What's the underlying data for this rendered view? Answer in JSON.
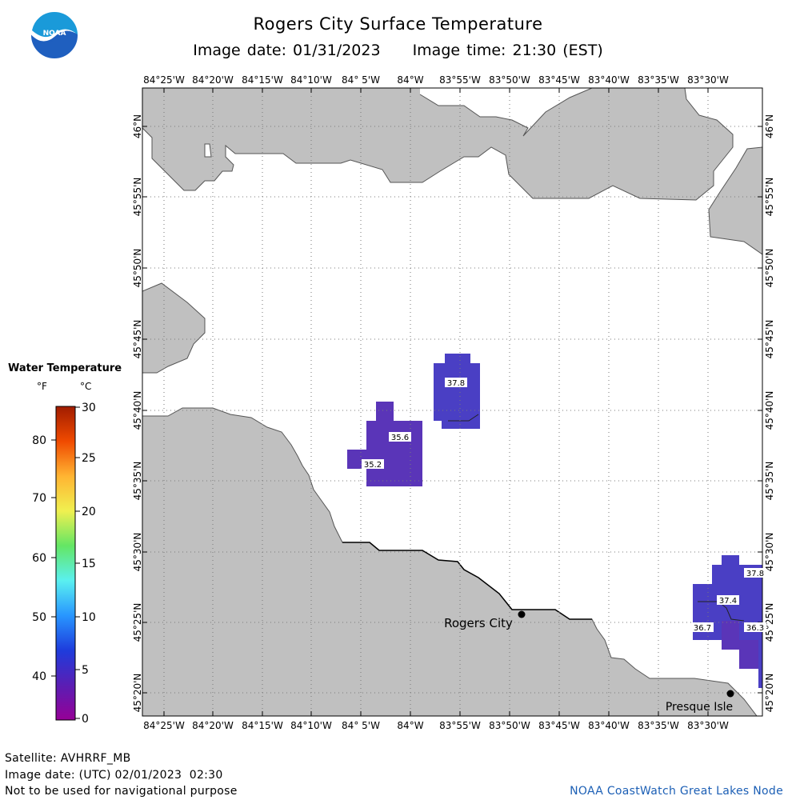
{
  "header": {
    "title": "Rogers City Surface Temperature",
    "image_date": "Image date: 01/31/2023",
    "image_time": "Image time: 21:30 (EST)"
  },
  "logo": {
    "text": "NOAA"
  },
  "map": {
    "lon_labels": [
      "84°25'W",
      "84°20'W",
      "84°15'W",
      "84°10'W",
      "84° 5'W",
      "84°W",
      "83°55'W",
      "83°50'W",
      "83°45'W",
      "83°40'W",
      "83°35'W",
      "83°30'W"
    ],
    "lat_labels": [
      "46°N",
      "45°55'N",
      "45°50'N",
      "45°45'N",
      "45°40'N",
      "45°35'N",
      "45°30'N",
      "45°25'N",
      "45°20'N"
    ],
    "places": [
      {
        "name": "Rogers City"
      },
      {
        "name": "Presque Isle"
      }
    ],
    "temperature_labels": [
      "37.8",
      "35.6",
      "35.2",
      "37.8",
      "37.4",
      "36.7",
      "36.3"
    ],
    "land_color": "#c0c0c0",
    "water_color": "#ffffff",
    "grid": "dotted"
  },
  "legend": {
    "title": "Water Temperature",
    "unit_f": "°F",
    "unit_c": "°C",
    "f_ticks": [
      "80",
      "70",
      "60",
      "50",
      "40"
    ],
    "c_ticks": [
      "30",
      "25",
      "20",
      "15",
      "10",
      "5",
      "0"
    ],
    "colors": [
      "#a01c00",
      "#f04a00",
      "#ffb432",
      "#f0f050",
      "#64e664",
      "#5af0f0",
      "#2896ff",
      "#1e3cdc",
      "#5a1eb4",
      "#960096"
    ]
  },
  "footer": {
    "satellite": "Satellite: AVHRRF_MB",
    "utc_date": "Image date: (UTC) 02/01/2023  02:30",
    "disclaimer": "Not to be used for navigational purpose",
    "credit": "NOAA CoastWatch Great Lakes Node"
  }
}
